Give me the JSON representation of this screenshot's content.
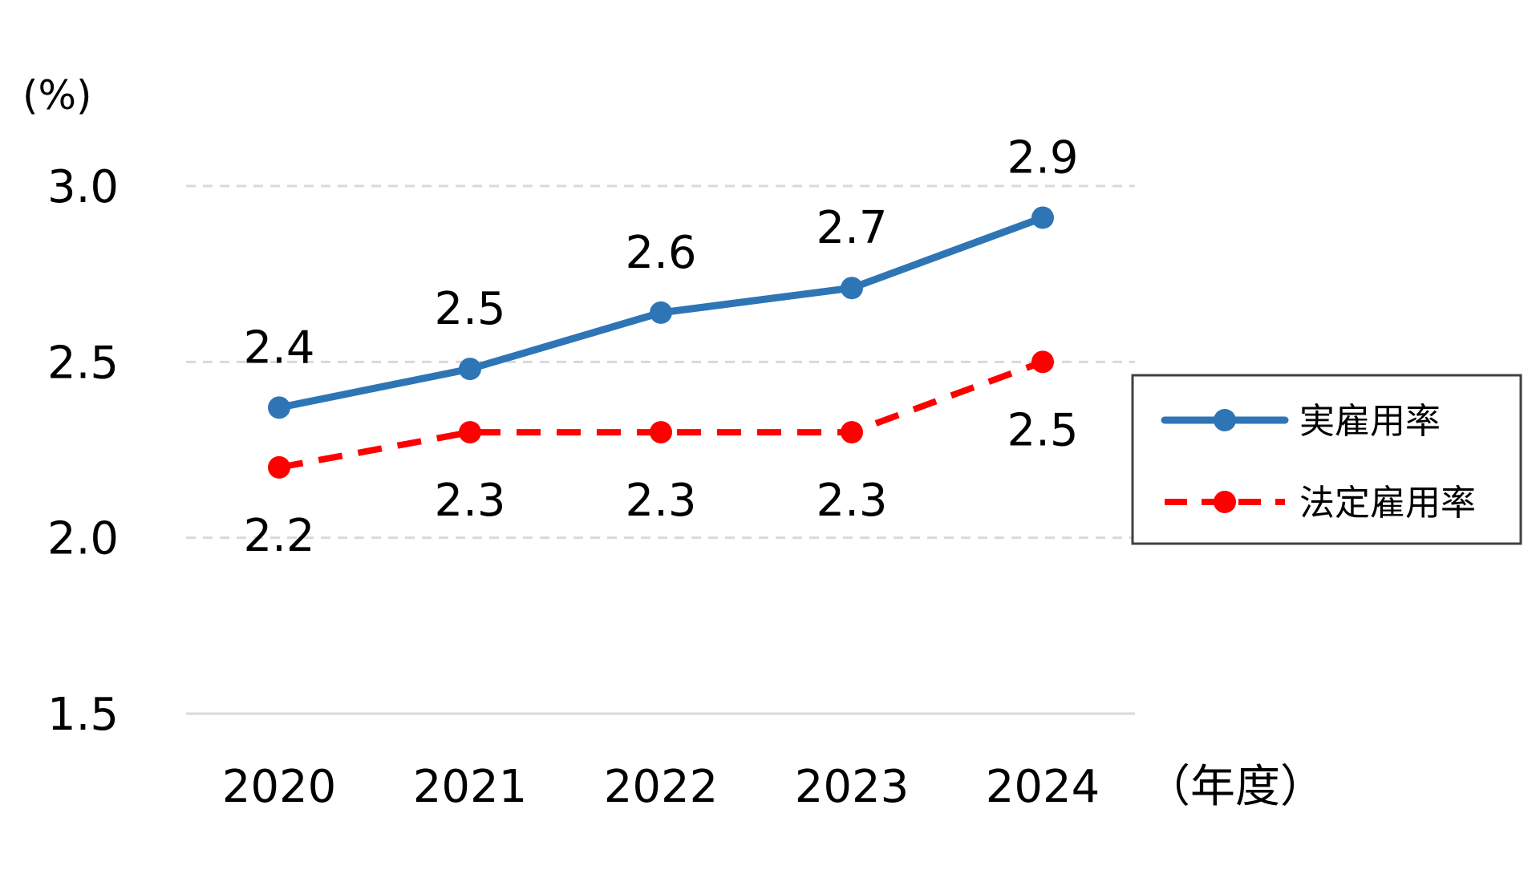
{
  "chart_data": {
    "type": "line",
    "title": "",
    "ylabel": "(%)",
    "xlabel": "（年度）",
    "categories": [
      "2020",
      "2021",
      "2022",
      "2023",
      "2024"
    ],
    "ylim": [
      1.5,
      3.0
    ],
    "yticks": [
      "1.5",
      "2.0",
      "2.5",
      "3.0"
    ],
    "grid": true,
    "legend_position": "right",
    "series": [
      {
        "name": "実雇用率",
        "values": [
          2.37,
          2.48,
          2.64,
          2.71,
          2.91
        ],
        "labels": [
          "2.4",
          "2.5",
          "2.6",
          "2.7",
          "2.9"
        ],
        "color": "#2e75b6",
        "line_style": "solid",
        "label_position": "above"
      },
      {
        "name": "法定雇用率",
        "values": [
          2.2,
          2.3,
          2.3,
          2.3,
          2.5
        ],
        "labels": [
          "2.2",
          "2.3",
          "2.3",
          "2.3",
          "2.5"
        ],
        "color": "#ff0000",
        "line_style": "dashed",
        "label_position": "below"
      }
    ]
  }
}
